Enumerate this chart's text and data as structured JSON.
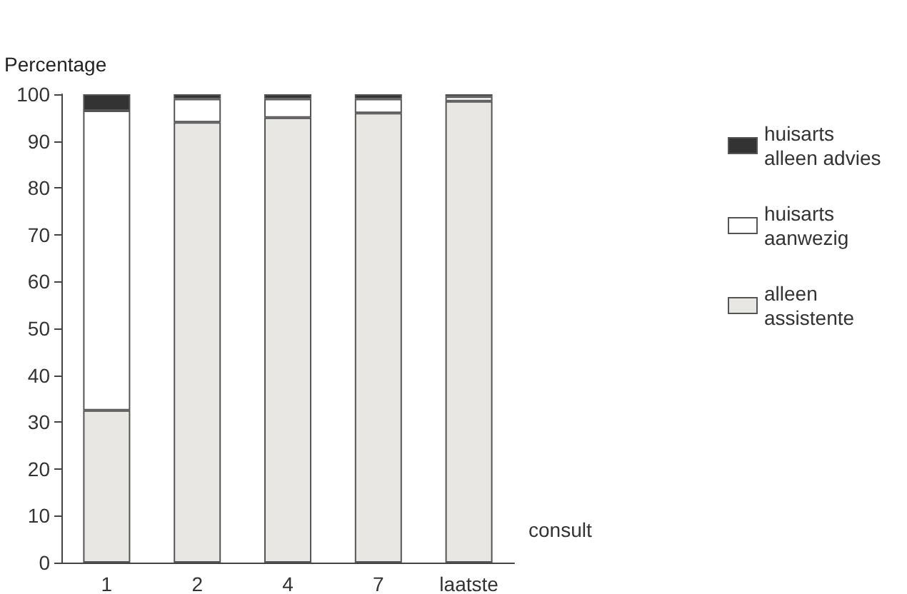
{
  "chart_data": {
    "type": "bar",
    "stacked": true,
    "ylabel": "Percentage",
    "xlabel": "consult",
    "categories": [
      "1",
      "2",
      "4",
      "7",
      "laatste"
    ],
    "series": [
      {
        "name": "alleen assistente",
        "color": "#e9e7e4",
        "values": [
          32.5,
          94,
          95,
          96,
          98.5
        ]
      },
      {
        "name": "huisarts aanwezig",
        "color": "#ffffff",
        "values": [
          64,
          5,
          4,
          3,
          1
        ]
      },
      {
        "name": "huisarts alleen advies",
        "color": "#333333",
        "values": [
          3.5,
          1,
          1,
          1,
          0.5
        ]
      }
    ],
    "ylim": [
      0,
      100
    ],
    "yticks": [
      0,
      10,
      20,
      30,
      40,
      50,
      60,
      70,
      80,
      90,
      100
    ],
    "grid": false,
    "legend": "right"
  }
}
